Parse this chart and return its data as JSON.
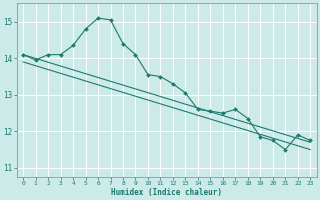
{
  "xlabel": "Humidex (Indice chaleur)",
  "xlim": [
    -0.5,
    23.5
  ],
  "ylim": [
    10.75,
    15.5
  ],
  "xticks": [
    0,
    1,
    2,
    3,
    4,
    5,
    6,
    7,
    8,
    9,
    10,
    11,
    12,
    13,
    14,
    15,
    16,
    17,
    18,
    19,
    20,
    21,
    22,
    23
  ],
  "yticks": [
    11,
    12,
    13,
    14,
    15
  ],
  "bg_color": "#cceae8",
  "grid_color": "#ffffff",
  "line_color": "#1a7a6e",
  "curve_x": [
    0,
    1,
    2,
    3,
    4,
    5,
    6,
    7,
    8,
    9,
    10,
    11,
    12,
    13,
    14,
    15,
    16,
    17,
    18,
    19,
    20,
    21,
    22,
    23
  ],
  "curve_y": [
    14.1,
    13.95,
    14.1,
    14.1,
    14.35,
    14.8,
    15.1,
    15.05,
    14.4,
    14.1,
    13.55,
    13.5,
    13.3,
    13.05,
    12.6,
    12.55,
    12.5,
    12.6,
    12.35,
    11.85,
    11.75,
    11.5,
    11.9,
    11.75
  ],
  "line1_x": [
    0,
    23
  ],
  "line1_y": [
    14.1,
    11.7
  ],
  "line2_x": [
    0,
    23
  ],
  "line2_y": [
    13.9,
    11.5
  ],
  "figsize": [
    3.2,
    2.0
  ],
  "dpi": 100
}
